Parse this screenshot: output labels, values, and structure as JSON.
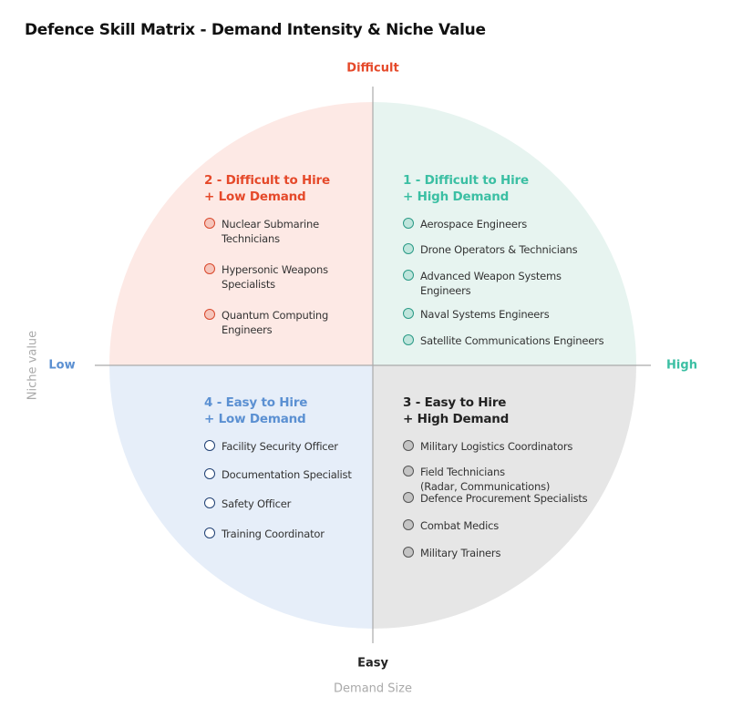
{
  "title": "Defence Skill Matrix - Demand Intensity & Niche Value",
  "axes": {
    "top": "Difficult",
    "bottom": "Easy",
    "left": "Low",
    "right": "High",
    "y_title": "Niche value",
    "x_title": "Demand Size"
  },
  "colors": {
    "q1_bg": "#e7f4f0",
    "q2_bg": "#fde9e5",
    "q3_bg": "#e6e6e6",
    "q4_bg": "#e6eef9",
    "red": "#e5492a",
    "teal": "#3bbfa3",
    "blue": "#5b90d2",
    "dark": "#222222"
  },
  "quadrants": {
    "q1": {
      "title1": "1 - Difficult to Hire",
      "title2": "+ High Demand",
      "items": [
        "Aerospace Engineers",
        "Drone Operators & Technicians",
        "Advanced Weapon Systems\nEngineers",
        "Naval Systems Engineers",
        "Satellite Communications Engineers"
      ]
    },
    "q2": {
      "title1": "2 - Difficult to Hire",
      "title2": "+ Low Demand",
      "items": [
        "Nuclear Submarine\nTechnicians",
        "Hypersonic Weapons\nSpecialists",
        "Quantum Computing\nEngineers"
      ]
    },
    "q3": {
      "title1": "3 - Easy to Hire",
      "title2": "+ High Demand",
      "items": [
        "Military Logistics Coordinators",
        "Field Technicians\n(Radar, Communications)",
        "Defence Procurement Specialists",
        "Combat Medics",
        "Military Trainers"
      ]
    },
    "q4": {
      "title1": "4 - Easy to Hire",
      "title2": "+ Low Demand",
      "items": [
        "Facility Security Officer",
        "Documentation Specialist",
        "Safety Officer",
        "Training Coordinator"
      ]
    }
  }
}
